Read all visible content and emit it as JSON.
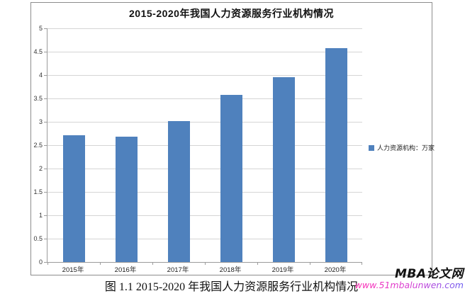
{
  "chart_data": {
    "type": "bar",
    "title": "2015-2020年我国人力资源服务行业机构情况",
    "categories": [
      "2015年",
      "2016年",
      "2017年",
      "2018年",
      "2019年",
      "2020年"
    ],
    "values": [
      2.71,
      2.68,
      3.02,
      3.57,
      3.96,
      4.58
    ],
    "series_name": "人力资源机构：万家",
    "xlabel": "",
    "ylabel": "",
    "ylim": [
      0,
      5
    ],
    "ytick_step": 0.5,
    "grid": true,
    "legend_position": "right-middle",
    "bar_color": "#4F81BD",
    "gridline_color": "#d5d5d5",
    "axis_color": "#9b9b9b"
  },
  "caption": "图 1.1 2015-2020 年我国人力资源服务行业机构情况",
  "watermark": {
    "site_name": "MBA论文网",
    "site_url": "www.51mbalunwen.com",
    "name_color": "#111111",
    "url_gradient_start": "#ff2bb1",
    "url_gradient_end": "#6b5bf0"
  }
}
